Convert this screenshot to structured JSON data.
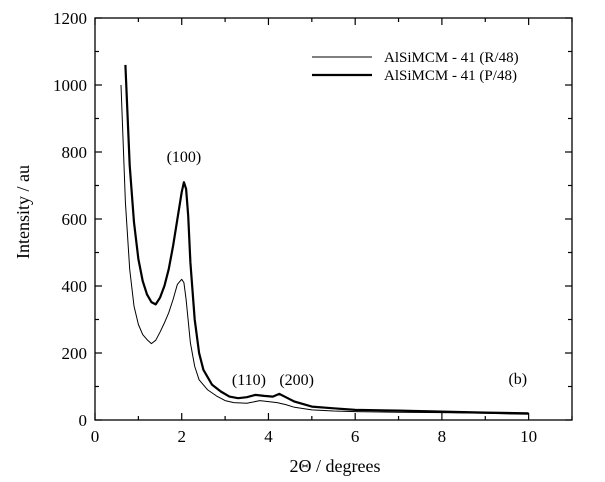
{
  "chart_data": {
    "type": "line",
    "title": "",
    "xlabel": "2Θ / degrees",
    "ylabel": "Intensity / au",
    "xlim": [
      0,
      11
    ],
    "ylim": [
      0,
      1200
    ],
    "xticks": [
      0,
      2,
      4,
      6,
      8,
      10
    ],
    "yticks": [
      0,
      200,
      400,
      600,
      800,
      1000,
      1200
    ],
    "grid": false,
    "legend_position": "top-right",
    "series": [
      {
        "name": "AlSiMCM - 41 (R/48)",
        "color": "#000000",
        "style": "thin",
        "x": [
          0.6,
          0.7,
          0.8,
          0.9,
          1.0,
          1.1,
          1.2,
          1.3,
          1.4,
          1.5,
          1.6,
          1.7,
          1.8,
          1.9,
          2.0,
          2.05,
          2.1,
          2.2,
          2.3,
          2.4,
          2.6,
          2.8,
          3.0,
          3.2,
          3.5,
          3.8,
          4.0,
          4.2,
          4.4,
          4.6,
          5.0,
          5.5,
          6.0,
          7.0,
          8.0,
          9.0,
          10.0
        ],
        "y": [
          1000,
          650,
          450,
          340,
          285,
          255,
          240,
          228,
          238,
          262,
          290,
          320,
          360,
          405,
          420,
          410,
          360,
          230,
          160,
          120,
          90,
          72,
          58,
          52,
          50,
          58,
          55,
          52,
          46,
          38,
          30,
          27,
          25,
          23,
          22,
          20,
          17
        ]
      },
      {
        "name": "AlSiMCM - 41 (P/48)",
        "color": "#000000",
        "style": "thick",
        "x": [
          0.7,
          0.8,
          0.9,
          1.0,
          1.1,
          1.2,
          1.3,
          1.4,
          1.5,
          1.6,
          1.7,
          1.8,
          1.9,
          2.0,
          2.05,
          2.1,
          2.15,
          2.2,
          2.3,
          2.4,
          2.5,
          2.7,
          2.9,
          3.1,
          3.3,
          3.5,
          3.7,
          3.9,
          4.1,
          4.25,
          4.4,
          4.6,
          5.0,
          5.5,
          6.0,
          7.0,
          8.0,
          9.0,
          10.0
        ],
        "y": [
          1060,
          760,
          590,
          480,
          415,
          375,
          352,
          345,
          365,
          400,
          450,
          520,
          600,
          680,
          710,
          690,
          610,
          470,
          300,
          200,
          150,
          105,
          85,
          70,
          65,
          68,
          75,
          72,
          70,
          78,
          68,
          55,
          40,
          35,
          30,
          28,
          25,
          22,
          20
        ]
      }
    ],
    "annotations": [
      {
        "text": "(100)",
        "x": 2.05,
        "y": 770
      },
      {
        "text": "(110)",
        "x": 3.55,
        "y": 105
      },
      {
        "text": "(200)",
        "x": 4.65,
        "y": 105
      },
      {
        "text": "(b)",
        "x": 9.75,
        "y": 108
      }
    ]
  }
}
